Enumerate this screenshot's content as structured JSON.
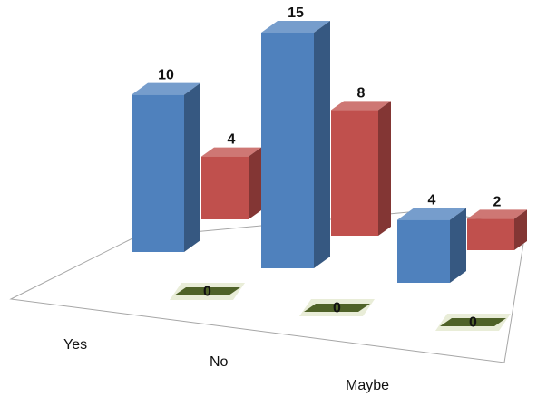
{
  "chart_data": {
    "type": "bar",
    "style": "3d-column",
    "categories": [
      "Yes",
      "No",
      "Maybe"
    ],
    "series": [
      {
        "values": [
          10,
          15,
          4
        ],
        "color": "#4f81bd"
      },
      {
        "values": [
          4,
          8,
          2
        ],
        "color": "#c0504d"
      },
      {
        "values": [
          0,
          0,
          0
        ],
        "color": "#4f6228"
      }
    ],
    "title": "",
    "xlabel": "",
    "ylabel": "",
    "ylim": [
      0,
      15
    ],
    "grid": false,
    "legend": "none"
  }
}
